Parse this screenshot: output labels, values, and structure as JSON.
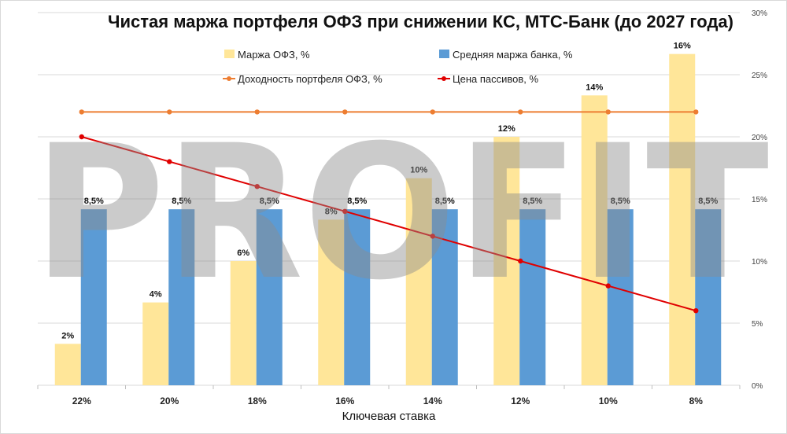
{
  "chart_data": {
    "type": "bar",
    "title": "Чистая маржа портфеля ОФЗ при снижении КС, МТС-Банк (до 2027 года)",
    "xlabel": "Ключевая ставка",
    "categories": [
      "22%",
      "20%",
      "18%",
      "16%",
      "14%",
      "12%",
      "10%",
      "8%"
    ],
    "bar_axis_range": [
      0,
      18
    ],
    "line_axis": {
      "position": "right",
      "range": [
        0,
        30
      ],
      "step": 5,
      "ticks": [
        "0%",
        "5%",
        "10%",
        "15%",
        "20%",
        "25%",
        "30%"
      ]
    },
    "grid": true,
    "legend_placement": "top",
    "series": [
      {
        "name": "Маржа ОФЗ, %",
        "type": "bar",
        "color": "#ffe699",
        "values": [
          2,
          4,
          6,
          8,
          10,
          12,
          14,
          16
        ],
        "labels": [
          "2%",
          "4%",
          "6%",
          "8%",
          "10%",
          "12%",
          "14%",
          "16%"
        ]
      },
      {
        "name": "Средняя маржа банка, %",
        "type": "bar",
        "color": "#5b9bd5",
        "values": [
          8.5,
          8.5,
          8.5,
          8.5,
          8.5,
          8.5,
          8.5,
          8.5
        ],
        "labels": [
          "8,5%",
          "8,5%",
          "8,5%",
          "8,5%",
          "8,5%",
          "8,5%",
          "8,5%",
          "8,5%"
        ]
      },
      {
        "name": "Доходность портфеля ОФЗ, %",
        "type": "line",
        "color": "#ed7d31",
        "values": [
          22,
          22,
          22,
          22,
          22,
          22,
          22,
          22
        ]
      },
      {
        "name": "Цена пассивов, %",
        "type": "line",
        "color": "#e00000",
        "values": [
          20,
          18,
          16,
          14,
          12,
          10,
          8,
          6
        ]
      }
    ],
    "watermark": "PROFIT"
  }
}
